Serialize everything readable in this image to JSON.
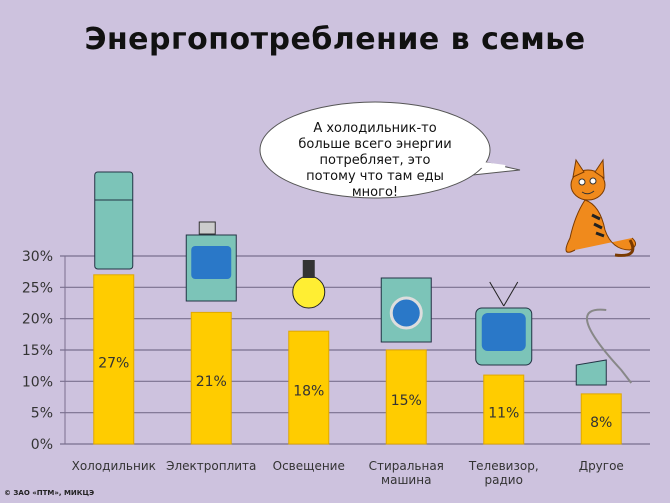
{
  "chart_data": {
    "type": "bar",
    "title": "Энергопотребление в семье",
    "categories": [
      "Холодильник",
      "Электроплита",
      "Освещение",
      "Стиральная машина",
      "Телевизор, радио",
      "Другое"
    ],
    "category_lines": [
      [
        "Холодильник"
      ],
      [
        "Электроплита"
      ],
      [
        "Освещение"
      ],
      [
        "Стиральная",
        "машина"
      ],
      [
        "Телевизор,",
        "радио"
      ],
      [
        "Другое"
      ]
    ],
    "values": [
      27,
      21,
      18,
      15,
      11,
      8
    ],
    "data_labels": [
      "27%",
      "21%",
      "18%",
      "15%",
      "11%",
      "8%"
    ],
    "yticks": [
      "0%",
      "5%",
      "10%",
      "15%",
      "20%",
      "25%",
      "30%"
    ],
    "ylim": [
      0,
      30
    ],
    "grid": true,
    "xlabel": "",
    "ylabel": "",
    "bar_color": "#ffcc00",
    "icons": [
      "refrigerator-icon",
      "electric-stove-icon",
      "light-bulb-icon",
      "washing-machine-icon",
      "tv-icon",
      "vacuum-cleaner-icon"
    ]
  },
  "speech_bubble": "А холодильник-то больше всего энергии потребляет, это потому что там еды много!",
  "copyright": "© ЗАО «ПТМ», МИКЦЭ",
  "colors": {
    "background": "#cdc2de",
    "grid": "#7a6f8e",
    "bar": "#ffcc00",
    "appliance": "#7cc4b8",
    "screen": "#2a78c8",
    "cat": "#f08a1c"
  }
}
